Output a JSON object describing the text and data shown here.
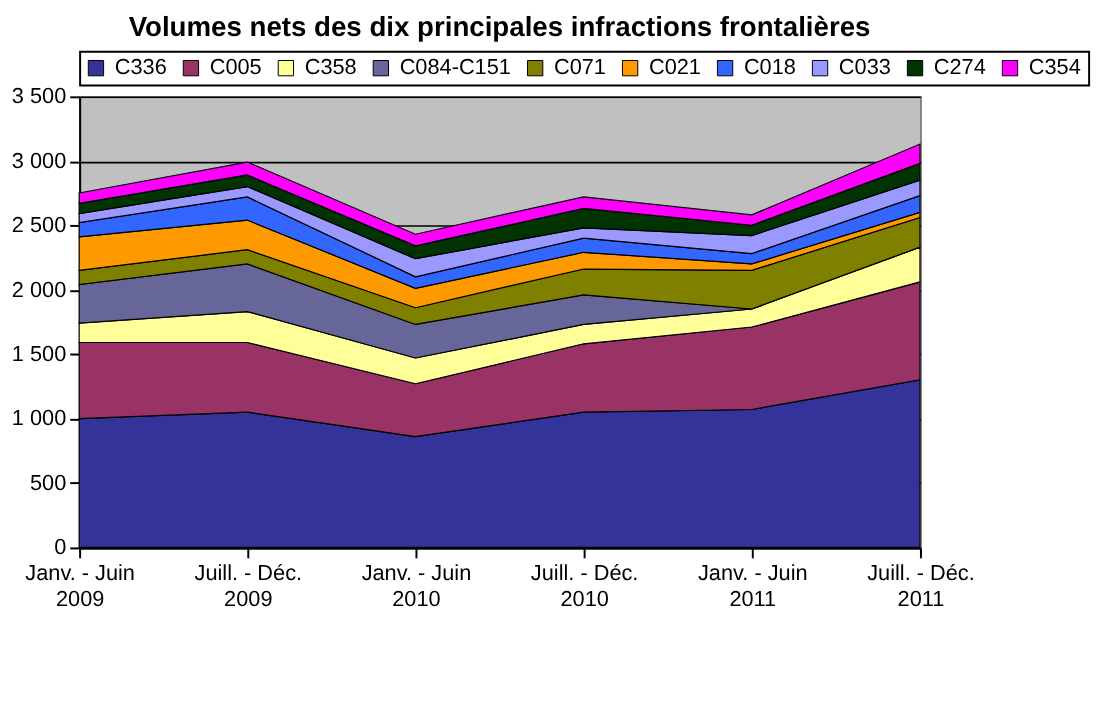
{
  "chart_data": {
    "type": "area",
    "title": "Volumes nets des dix principales infractions frontalières",
    "categories": [
      "Janv.  - Juin\n2009",
      "Juill. - Déc.\n2009",
      "Janv.  - Juin\n2010",
      "Juill. - Déc.\n2010",
      "Janv.  - Juin\n2011",
      "Juill. - Déc.\n2011"
    ],
    "stacked": true,
    "series": [
      {
        "name": "C336",
        "color": "#333399",
        "values": [
          1000,
          1050,
          860,
          1050,
          1070,
          1300
        ]
      },
      {
        "name": "C005",
        "color": "#993366",
        "values": [
          590,
          540,
          410,
          530,
          640,
          760
        ]
      },
      {
        "name": "C358",
        "color": "#ffff99",
        "values": [
          150,
          240,
          200,
          150,
          140,
          270
        ]
      },
      {
        "name": "C084-C151",
        "color": "#666699",
        "values": [
          300,
          370,
          260,
          230,
          0,
          0
        ]
      },
      {
        "name": "C071",
        "color": "#808000",
        "values": [
          110,
          110,
          130,
          200,
          300,
          230
        ]
      },
      {
        "name": "C021",
        "color": "#ff9900",
        "values": [
          260,
          230,
          150,
          130,
          50,
          40
        ]
      },
      {
        "name": "C018",
        "color": "#3366ff",
        "values": [
          110,
          180,
          90,
          110,
          80,
          130
        ]
      },
      {
        "name": "C033",
        "color": "#9999ff",
        "values": [
          70,
          80,
          140,
          80,
          140,
          120
        ]
      },
      {
        "name": "C274",
        "color": "#003300",
        "values": [
          80,
          90,
          100,
          150,
          80,
          130
        ]
      },
      {
        "name": "C354",
        "color": "#ff00ff",
        "values": [
          80,
          100,
          90,
          90,
          80,
          150
        ]
      }
    ],
    "ylim": [
      0,
      3500
    ],
    "yticks": [
      0,
      500,
      {
        "value": 1000,
        "label": "1 000"
      },
      {
        "value": 1500,
        "label": "1 500"
      },
      {
        "value": 2000,
        "label": "2 000"
      },
      {
        "value": 2500,
        "label": "2 500"
      },
      {
        "value": 3000,
        "label": "3 000"
      },
      {
        "value": 3500,
        "label": "3 500"
      }
    ],
    "grid": "y",
    "legend": "top"
  }
}
